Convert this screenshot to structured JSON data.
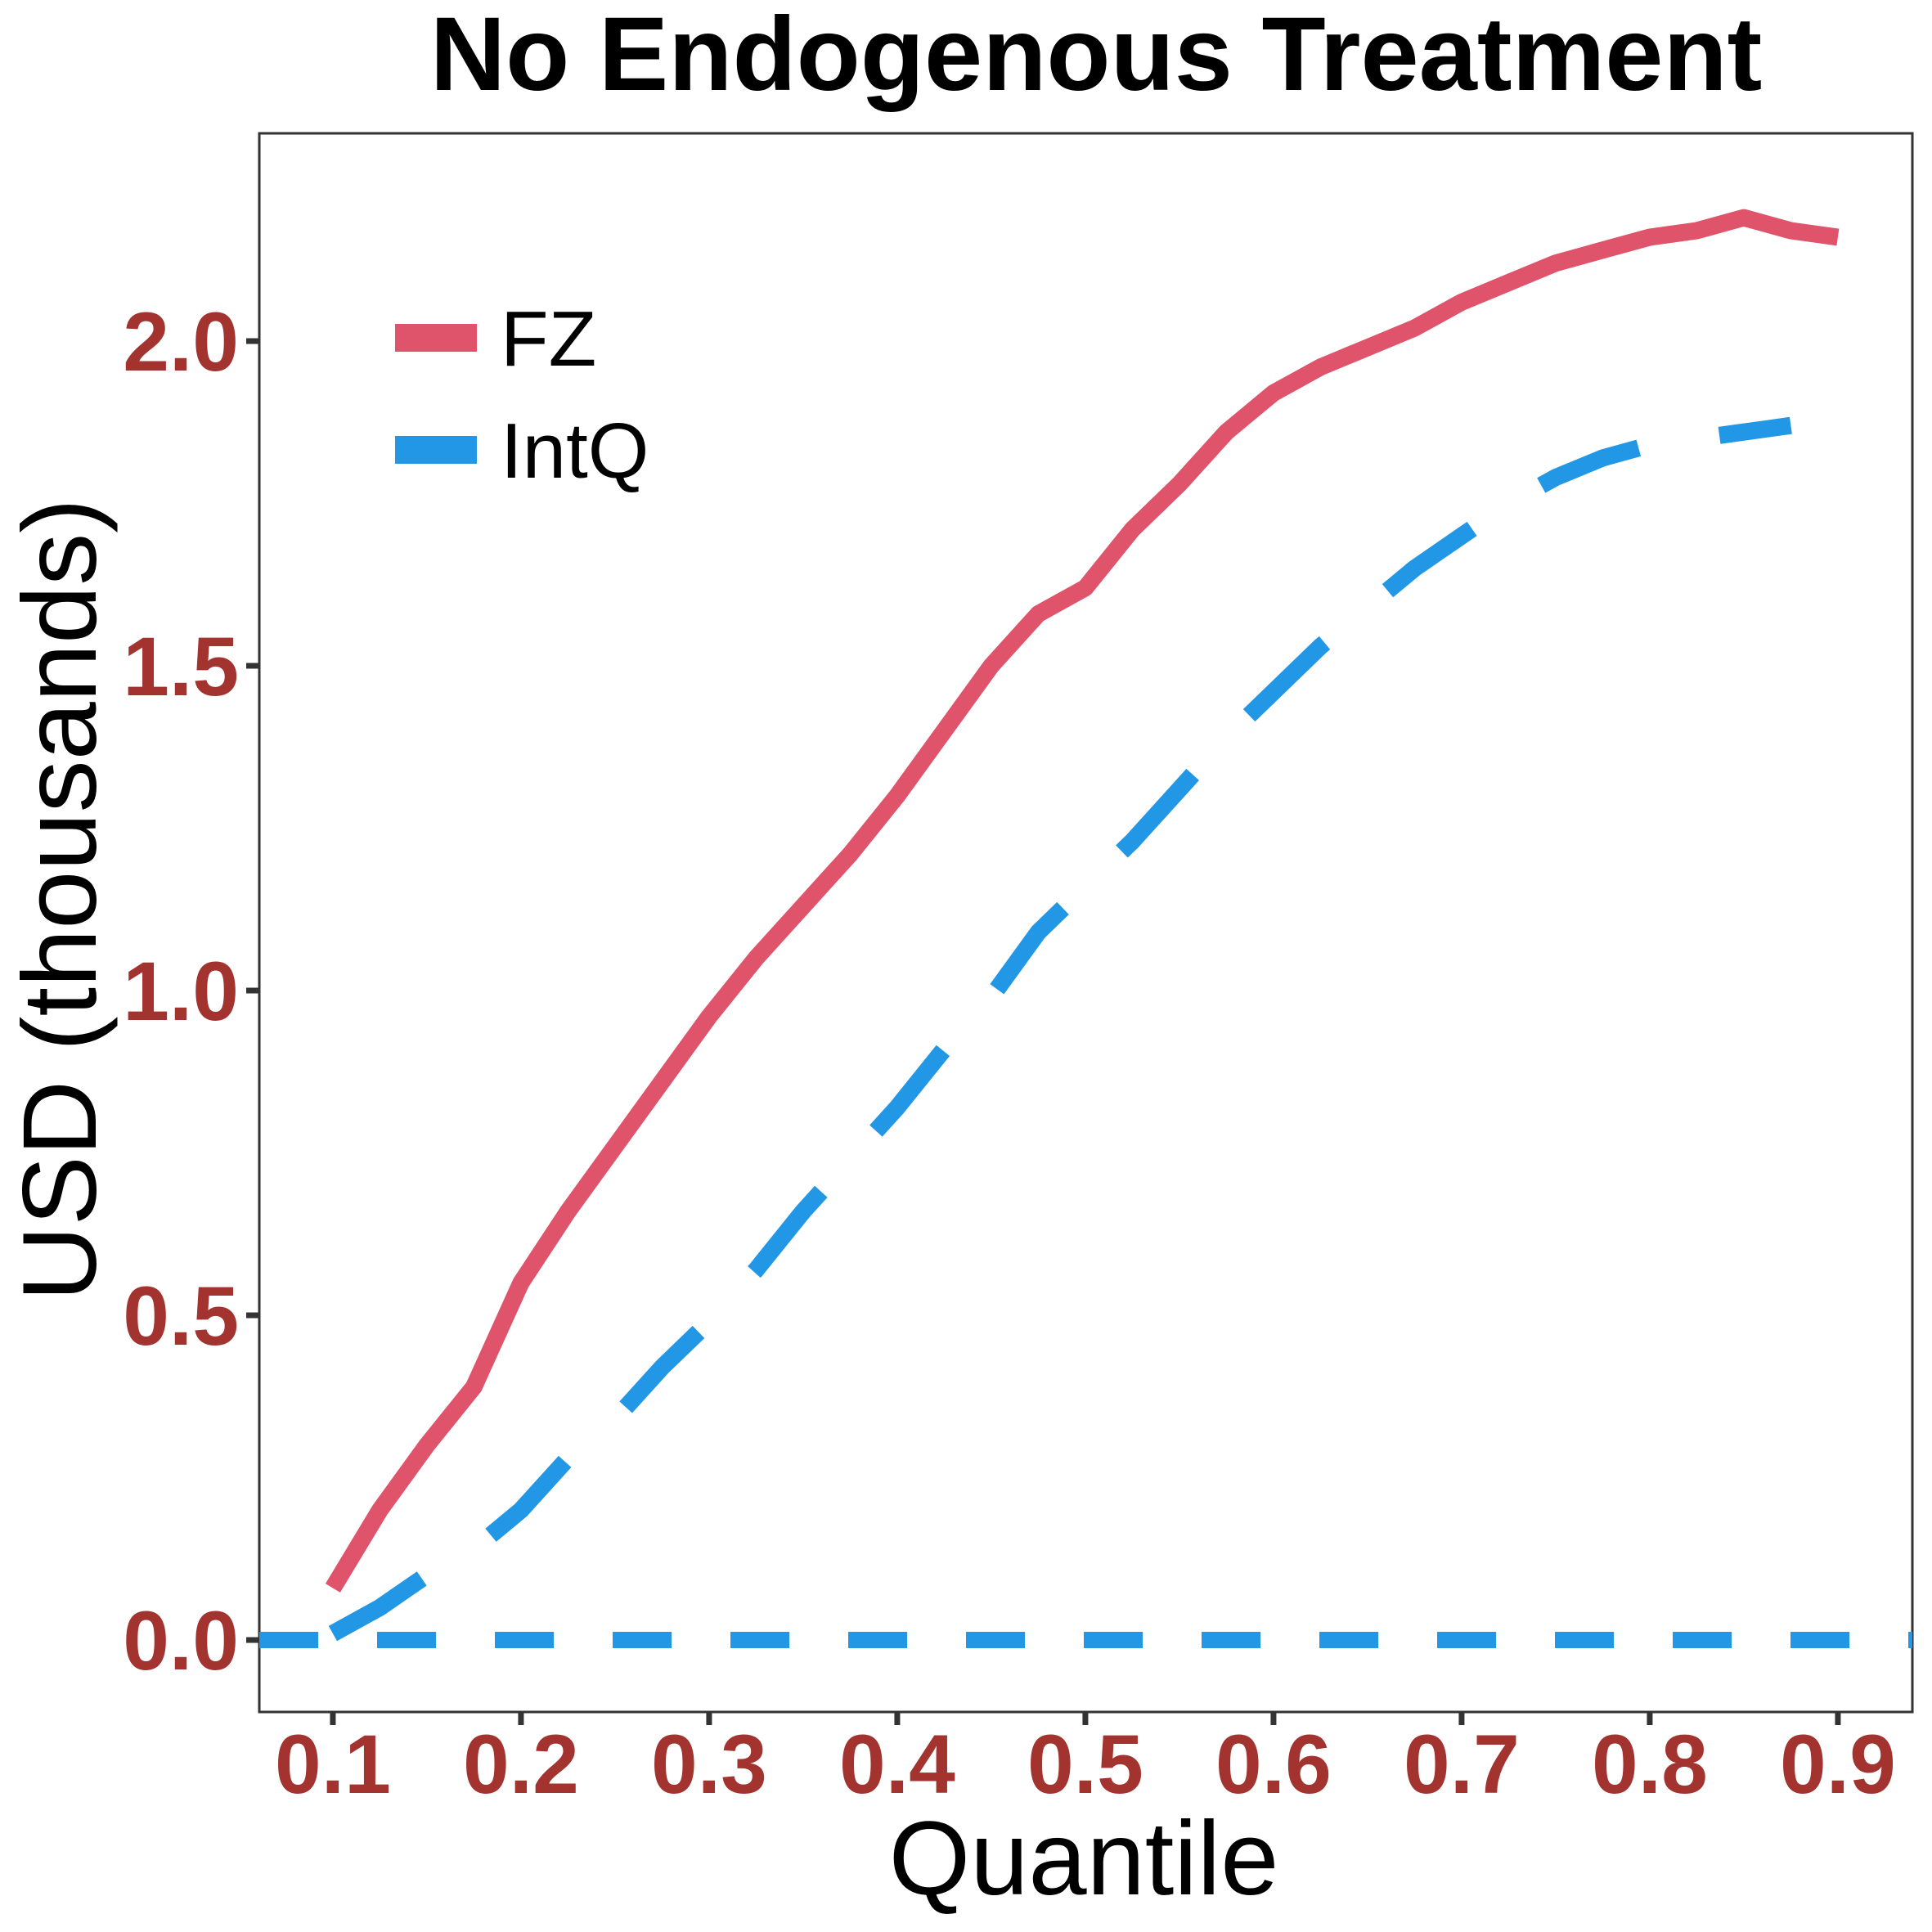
{
  "chart_data": {
    "type": "line",
    "title": "No Endogenous Treatment",
    "xlabel": "Quantile",
    "ylabel": "USD (thousands)",
    "xlim": [
      0.0609,
      0.9396
    ],
    "ylim": [
      -0.1108,
      2.3199
    ],
    "grid": "off",
    "legend_position": "inside-top-left",
    "axis_text_color": "#A3332F",
    "axis_line_color": "#333333",
    "x_ticks": {
      "values": [
        0.1,
        0.2,
        0.3,
        0.4,
        0.5,
        0.6,
        0.7,
        0.8,
        0.9
      ],
      "labels": [
        "0.1",
        "0.2",
        "0.3",
        "0.4",
        "0.5",
        "0.6",
        "0.7",
        "0.8",
        "0.9"
      ]
    },
    "y_ticks": {
      "values": [
        0.0,
        0.5,
        1.0,
        1.5,
        2.0
      ],
      "labels": [
        "0.0",
        "0.5",
        "1.0",
        "1.5",
        "2.0"
      ]
    },
    "series": [
      {
        "name": "FZ",
        "color": "#DF536B",
        "style": "solid",
        "x": [
          0.1,
          0.125,
          0.15,
          0.175,
          0.2,
          0.225,
          0.25,
          0.275,
          0.3,
          0.325,
          0.35,
          0.375,
          0.4,
          0.425,
          0.45,
          0.475,
          0.5,
          0.525,
          0.55,
          0.575,
          0.6,
          0.625,
          0.65,
          0.675,
          0.7,
          0.725,
          0.75,
          0.775,
          0.8,
          0.825,
          0.85,
          0.875,
          0.9
        ],
        "y": [
          0.08,
          0.2,
          0.3,
          0.39,
          0.55,
          0.66,
          0.76,
          0.86,
          0.96,
          1.05,
          1.13,
          1.21,
          1.3,
          1.4,
          1.5,
          1.58,
          1.62,
          1.71,
          1.78,
          1.86,
          1.92,
          1.96,
          1.99,
          2.02,
          2.06,
          2.09,
          2.12,
          2.14,
          2.16,
          2.17,
          2.19,
          2.17,
          2.16
        ]
      },
      {
        "name": "IntQ",
        "color": "#2297E6",
        "style": "dashed",
        "x": [
          0.1,
          0.125,
          0.15,
          0.175,
          0.2,
          0.225,
          0.25,
          0.275,
          0.3,
          0.325,
          0.35,
          0.375,
          0.4,
          0.425,
          0.45,
          0.475,
          0.5,
          0.525,
          0.55,
          0.575,
          0.6,
          0.625,
          0.65,
          0.675,
          0.7,
          0.725,
          0.75,
          0.775,
          0.8,
          0.825,
          0.85,
          0.875
        ],
        "y": [
          0.01,
          0.05,
          0.1,
          0.14,
          0.2,
          0.28,
          0.34,
          0.42,
          0.49,
          0.57,
          0.66,
          0.74,
          0.82,
          0.91,
          0.99,
          1.09,
          1.16,
          1.23,
          1.31,
          1.39,
          1.46,
          1.53,
          1.59,
          1.65,
          1.7,
          1.75,
          1.79,
          1.82,
          1.84,
          1.85,
          1.86,
          1.87
        ]
      }
    ],
    "reference_line": {
      "y": 0,
      "color": "#2297E6",
      "style": "dashed"
    },
    "legend": {
      "items": [
        {
          "label": "FZ"
        },
        {
          "label": "IntQ"
        }
      ]
    }
  }
}
